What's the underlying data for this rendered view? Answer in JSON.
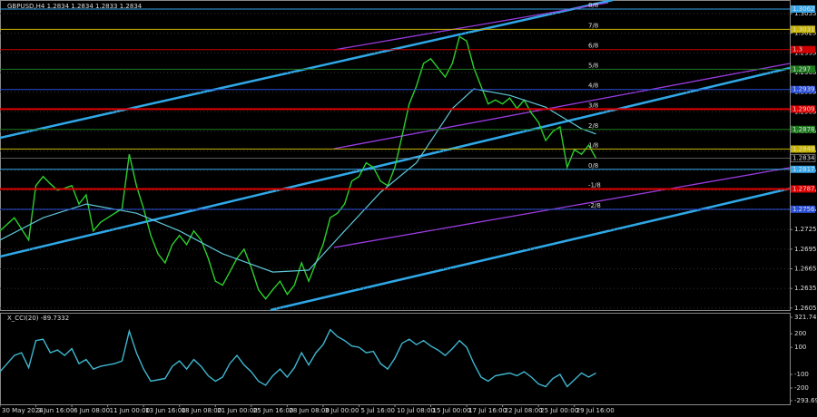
{
  "chart_data": [
    {
      "type": "line",
      "title": "GBPUSD,H4  1.2834 1.2834 1.2833 1.2834",
      "x": [
        0,
        1,
        2,
        3,
        4,
        5,
        6,
        7,
        8,
        9,
        10,
        11,
        12,
        13,
        14,
        15,
        16,
        17,
        18,
        19,
        20,
        21,
        22,
        23,
        24,
        25,
        26,
        27,
        28,
        29,
        30,
        31,
        32,
        33,
        34,
        35,
        36,
        37,
        38,
        39,
        40,
        41,
        42,
        43,
        44,
        45,
        46,
        47,
        48,
        49,
        50,
        51,
        52,
        53,
        54,
        55,
        56,
        57,
        58,
        59,
        60,
        61,
        62,
        63,
        64,
        65,
        66,
        67,
        68,
        69,
        70,
        71,
        72,
        73,
        74,
        75,
        76,
        77,
        78,
        79,
        80,
        81,
        82,
        83
      ],
      "xlim": [
        0,
        110
      ],
      "ylim": [
        1.2602,
        1.3073
      ],
      "yticks": [
        1.2605,
        1.2635,
        1.2665,
        1.2695,
        1.2725,
        1.2755,
        1.2785,
        1.2815,
        1.2845,
        1.2875,
        1.2905,
        1.2935,
        1.2965,
        1.2995,
        1.3025,
        1.3055
      ],
      "grid": true,
      "series": [
        {
          "color": "#2bd12b",
          "values": [
            1.2723,
            1.2733,
            1.2743,
            1.2726,
            1.2709,
            1.2792,
            1.2806,
            1.2795,
            1.2785,
            1.2788,
            1.2792,
            1.2764,
            1.2778,
            1.2723,
            1.2736,
            1.2743,
            1.275,
            1.2757,
            1.284,
            1.2792,
            1.2757,
            1.2716,
            1.2688,
            1.2674,
            1.2702,
            1.2716,
            1.2702,
            1.2723,
            1.2709,
            1.2681,
            1.2646,
            1.264,
            1.266,
            1.2681,
            1.2695,
            1.2667,
            1.2633,
            1.2619,
            1.2633,
            1.2646,
            1.2626,
            1.264,
            1.2674,
            1.2646,
            1.2674,
            1.2702,
            1.2743,
            1.275,
            1.2764,
            1.2799,
            1.2806,
            1.2827,
            1.282,
            1.2799,
            1.2792,
            1.282,
            1.2868,
            1.2917,
            1.2944,
            1.2979,
            1.2986,
            1.2972,
            1.2958,
            1.2979,
            1.302,
            1.3013,
            1.2972,
            1.2944,
            1.2917,
            1.2923,
            1.2917,
            1.2926,
            1.291,
            1.2923,
            1.2903,
            1.2889,
            1.2861,
            1.2875,
            1.2882,
            1.282,
            1.2847,
            1.284,
            1.2854,
            1.2834
          ]
        },
        {
          "color": "#5fc6d8",
          "x": [
            0,
            6,
            12,
            19,
            25,
            31,
            38,
            43,
            48,
            53,
            58,
            63,
            66,
            71,
            76,
            81,
            83
          ],
          "values": [
            1.2709,
            1.2743,
            1.2764,
            1.275,
            1.2723,
            1.2688,
            1.266,
            1.2663,
            1.2723,
            1.2782,
            1.2827,
            1.291,
            1.294,
            1.293,
            1.2912,
            1.2879,
            1.2871
          ]
        }
      ],
      "levels": [
        {
          "name": "8/8",
          "value": 1.3062,
          "color": "#38a6e8"
        },
        {
          "name": "7/8",
          "value": 1.3031,
          "color": "#c8b400"
        },
        {
          "name": "6/8",
          "value": 1.3,
          "color": "#d00000"
        },
        {
          "name": "5/8",
          "value": 1.297,
          "color": "#1e7a1e"
        },
        {
          "name": "4/8",
          "value": 1.2939,
          "color": "#2a4fd8"
        },
        {
          "name": "3/8",
          "value": 1.2909,
          "color": "#e00000"
        },
        {
          "name": "2/8",
          "value": 1.2878,
          "color": "#1e7a1e"
        },
        {
          "name": "1/8",
          "value": 1.2848,
          "color": "#c8b400"
        },
        {
          "name": "0/8",
          "value": 1.2817,
          "color": "#38a6e8"
        },
        {
          "name": "-1/8",
          "value": 1.2787,
          "color": "#e00000"
        },
        {
          "name": "-2/8",
          "value": 1.2756,
          "color": "#2a4fd8"
        }
      ],
      "current_price": 1.2834
    },
    {
      "type": "line",
      "title": "X_CCI(20) -89.7332",
      "x": [
        0,
        1,
        2,
        3,
        4,
        5,
        6,
        7,
        8,
        9,
        10,
        11,
        12,
        13,
        14,
        15,
        16,
        17,
        18,
        19,
        20,
        21,
        22,
        23,
        24,
        25,
        26,
        27,
        28,
        29,
        30,
        31,
        32,
        33,
        34,
        35,
        36,
        37,
        38,
        39,
        40,
        41,
        42,
        43,
        44,
        45,
        46,
        47,
        48,
        49,
        50,
        51,
        52,
        53,
        54,
        55,
        56,
        57,
        58,
        59,
        60,
        61,
        62,
        63,
        64,
        65,
        66,
        67,
        68,
        69,
        70,
        71,
        72,
        73,
        74,
        75,
        76,
        77,
        78,
        79,
        80,
        81,
        82,
        83
      ],
      "xlim": [
        0,
        110
      ],
      "xticks": [
        {
          "value": 0,
          "label": "30 May 2024"
        },
        {
          "value": 5,
          "label": "3 Jun 16:00"
        },
        {
          "value": 10,
          "label": "6 Jun 08:00"
        },
        {
          "value": 15,
          "label": "11 Jun 00:00"
        },
        {
          "value": 20,
          "label": "13 Jun 16:00"
        },
        {
          "value": 25,
          "label": "18 Jun 08:00"
        },
        {
          "value": 30,
          "label": "21 Jun 00:00"
        },
        {
          "value": 35,
          "label": "25 Jun 16:00"
        },
        {
          "value": 40,
          "label": "28 Jun 08:00"
        },
        {
          "value": 45,
          "label": "3 Jul 00:00"
        },
        {
          "value": 50,
          "label": "5 Jul 16:00"
        },
        {
          "value": 55,
          "label": "10 Jul 08:00"
        },
        {
          "value": 60,
          "label": "15 Jul 00:00"
        },
        {
          "value": 65,
          "label": "17 Jul 16:00"
        },
        {
          "value": 70,
          "label": "22 Jul 08:00"
        },
        {
          "value": 75,
          "label": "25 Jul 00:00"
        },
        {
          "value": 80,
          "label": "29 Jul 16:00"
        }
      ],
      "ylim": [
        -293.6998,
        321.7476
      ],
      "yticks": [
        -293.6998,
        -200,
        -100,
        100,
        200,
        321.7476
      ],
      "series": [
        {
          "color": "#3fb6cf",
          "values": [
            -80,
            -20,
            40,
            60,
            -50,
            150,
            160,
            60,
            80,
            40,
            90,
            -20,
            10,
            -60,
            -40,
            -30,
            -20,
            0,
            220,
            60,
            -60,
            -150,
            -140,
            -130,
            -40,
            0,
            -60,
            10,
            -40,
            -110,
            -150,
            -120,
            -20,
            40,
            -30,
            -80,
            -150,
            -180,
            -110,
            -60,
            -120,
            -50,
            60,
            -30,
            60,
            120,
            230,
            180,
            150,
            110,
            100,
            60,
            70,
            -20,
            -60,
            20,
            130,
            160,
            120,
            150,
            110,
            80,
            40,
            90,
            150,
            100,
            -20,
            -120,
            -150,
            -110,
            -100,
            -90,
            -110,
            -80,
            -120,
            -170,
            -190,
            -130,
            -100,
            -190,
            -140,
            -90,
            -120,
            -89.7332
          ]
        }
      ]
    }
  ]
}
